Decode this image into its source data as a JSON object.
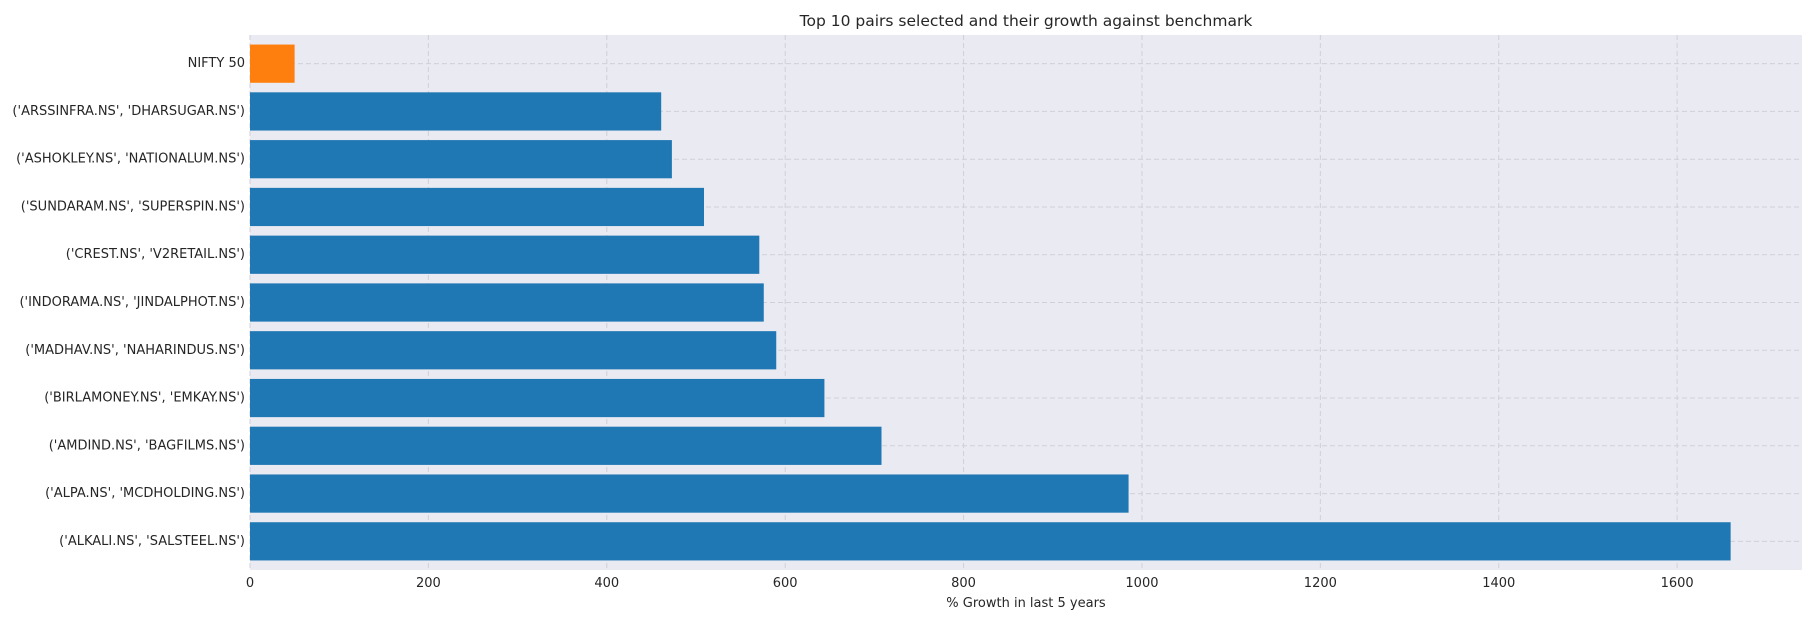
{
  "chart_data": {
    "type": "bar",
    "orientation": "horizontal",
    "title": "Top 10 pairs selected and their growth against benchmark",
    "xlabel": "% Growth in last 5 years",
    "ylabel": "",
    "xlim": [
      0,
      1740
    ],
    "xticks": [
      0,
      200,
      400,
      600,
      800,
      1000,
      1200,
      1400,
      1600
    ],
    "grid": true,
    "background_color": "#eaeaf2",
    "categories": [
      "NIFTY 50",
      "('ARSSINFRA.NS', 'DHARSUGAR.NS')",
      "('ASHOKLEY.NS', 'NATIONALUM.NS')",
      "('SUNDARAM.NS', 'SUPERSPIN.NS')",
      "('CREST.NS', 'V2RETAIL.NS')",
      "('INDORAMA.NS', 'JINDALPHOT.NS')",
      "('MADHAV.NS', 'NAHARINDUS.NS')",
      "('BIRLAMONEY.NS', 'EMKAY.NS')",
      "('AMDIND.NS', 'BAGFILMS.NS')",
      "('ALPA.NS', 'MCDHOLDING.NS')",
      "('ALKALI.NS', 'SALSTEEL.NS')"
    ],
    "values": [
      50,
      461,
      473,
      509,
      571,
      576,
      590,
      644,
      708,
      985,
      1660
    ],
    "colors": [
      "#ff7f0e",
      "#1f77b4",
      "#1f77b4",
      "#1f77b4",
      "#1f77b4",
      "#1f77b4",
      "#1f77b4",
      "#1f77b4",
      "#1f77b4",
      "#1f77b4",
      "#1f77b4"
    ]
  }
}
